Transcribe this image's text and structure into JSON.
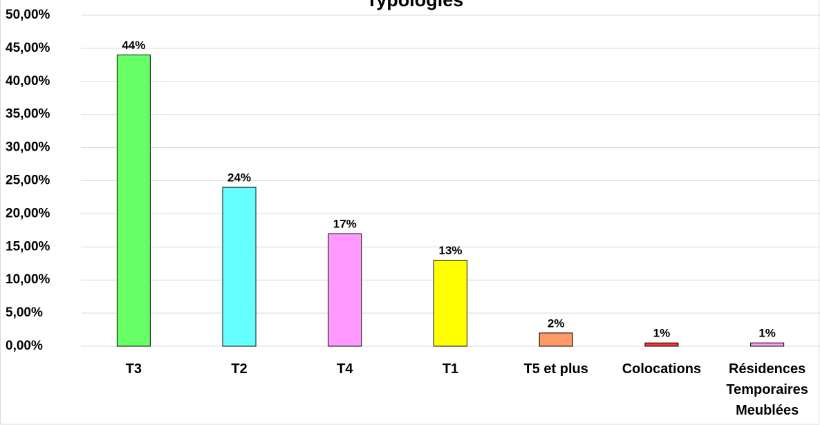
{
  "chart_data": {
    "type": "bar",
    "title": "Typologies",
    "categories": [
      "T3",
      "T2",
      "T4",
      "T1",
      "T5 et plus",
      "Colocations",
      "Résidences Temporaires Meublées"
    ],
    "values": [
      44,
      24,
      17,
      13,
      2,
      0.5,
      0.5
    ],
    "value_labels": [
      "44%",
      "24%",
      "17%",
      "13%",
      "2%",
      "1%",
      "1%"
    ],
    "colors": [
      "#66ff66",
      "#66ffff",
      "#ff99ff",
      "#ffff00",
      "#ff9966",
      "#ff3333",
      "#ff99ff"
    ],
    "ylim": [
      0,
      50
    ],
    "yticks": [
      {
        "value": 0,
        "label": "0,00%"
      },
      {
        "value": 5,
        "label": "5,00%"
      },
      {
        "value": 10,
        "label": "10,00%"
      },
      {
        "value": 15,
        "label": "15,00%"
      },
      {
        "value": 20,
        "label": "20,00%"
      },
      {
        "value": 25,
        "label": "25,00%"
      },
      {
        "value": 30,
        "label": "30,00%"
      },
      {
        "value": 35,
        "label": "35,00%"
      },
      {
        "value": 40,
        "label": "40,00%"
      },
      {
        "value": 45,
        "label": "45,00%"
      },
      {
        "value": 50,
        "label": "50,00%"
      }
    ],
    "grid": true
  }
}
